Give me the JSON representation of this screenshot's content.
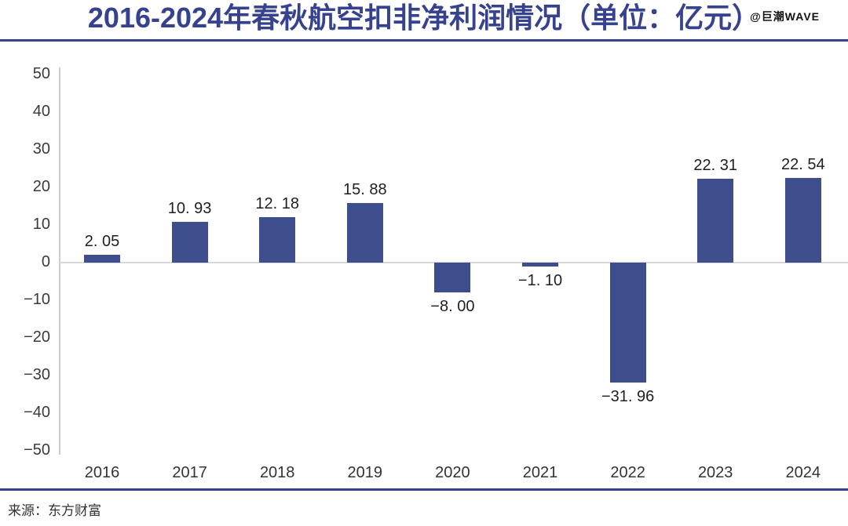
{
  "header": {
    "title": "2016-2024年春秋航空扣非净利润情况（单位：亿元）",
    "watermark": "@巨潮WAVE"
  },
  "footer": {
    "source": "来源：东方财富"
  },
  "colors": {
    "bar": "#3E4D8C",
    "title": "#36428E",
    "divider": "#36428E",
    "axis_line": "#CCCCCC",
    "zero_line": "#D8D8D8",
    "value_text": "#1F1F1F",
    "tick_text": "#3A3A3A"
  },
  "chart_data": {
    "type": "bar",
    "title": "2016-2024年春秋航空扣非净利润情况（单位：亿元）",
    "categories": [
      "2016",
      "2017",
      "2018",
      "2019",
      "2020",
      "2021",
      "2022",
      "2023",
      "2024"
    ],
    "values": [
      2.05,
      10.93,
      12.18,
      15.88,
      -8.0,
      -1.1,
      -31.96,
      22.31,
      22.54
    ],
    "value_labels": [
      "2. 05",
      "10. 93",
      "12. 18",
      "15. 88",
      "−8. 00",
      "−1. 10",
      "−31. 96",
      "22. 31",
      "22. 54"
    ],
    "ylim": [
      -50,
      50
    ],
    "yticks": [
      50,
      40,
      30,
      20,
      10,
      0,
      -10,
      -20,
      -30,
      -40,
      -50
    ],
    "ytick_labels": [
      "50",
      "40",
      "30",
      "20",
      "10",
      "0",
      "−10",
      "−20",
      "−30",
      "−40",
      "−50"
    ],
    "grid": false,
    "legend": null,
    "ylabel": "",
    "xlabel": "",
    "source": "东方财富"
  }
}
